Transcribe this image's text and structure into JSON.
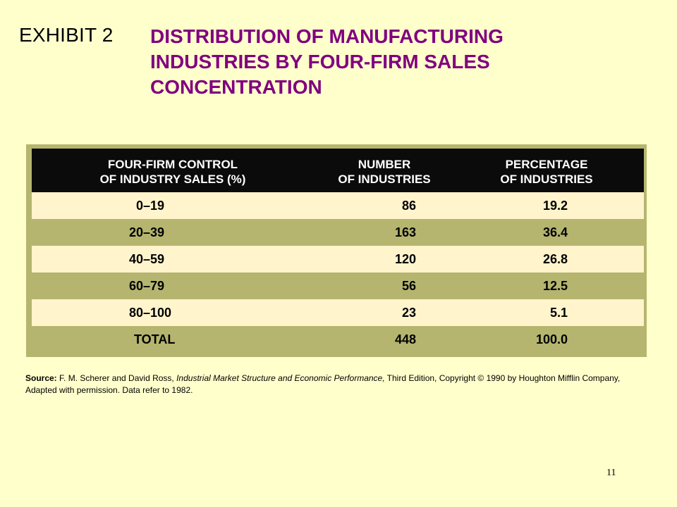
{
  "exhibit_label": "EXHIBIT 2",
  "title_lines": [
    "DISTRIBUTION OF MANUFACTURING",
    "INDUSTRIES BY FOUR-FIRM SALES",
    "CONCENTRATION"
  ],
  "table": {
    "headers": [
      [
        "FOUR-FIRM CONTROL",
        "OF INDUSTRY SALES (%)"
      ],
      [
        "NUMBER",
        "OF INDUSTRIES"
      ],
      [
        "PERCENTAGE",
        "OF INDUSTRIES"
      ]
    ],
    "rows": [
      [
        "0–19",
        "86",
        "19.2"
      ],
      [
        "20–39",
        "163",
        "36.4"
      ],
      [
        "40–59",
        "120",
        "26.8"
      ],
      [
        "60–79",
        "56",
        "12.5"
      ],
      [
        "80–100",
        "23",
        "5.1"
      ],
      [
        "TOTAL",
        "448",
        "100.0"
      ]
    ]
  },
  "source": {
    "label": "Source:",
    "authors": " F. M. Scherer and David Ross, ",
    "book": "Industrial Market Structure and Economic Performance,",
    "rest": " Third Edition, Copyright © 1990 by Houghton Mifflin Company, Adapted with permission. Data refer to 1982."
  },
  "page_number": "11",
  "colors": {
    "background": "#ffffcc",
    "title": "#800080",
    "table_frame": "#b5b56f",
    "header_bg": "#0b0b0b",
    "row_light": "#fff4cc"
  }
}
